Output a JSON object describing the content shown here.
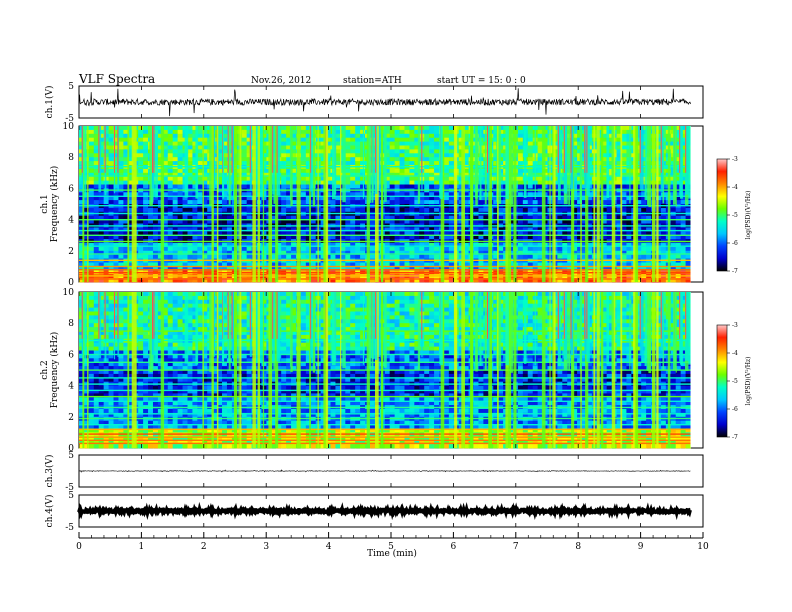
{
  "header": {
    "title": "VLF  Spectra",
    "date": "Nov.26, 2012",
    "station": "station=ATH",
    "start": "start  UT  =   15: 0  : 0"
  },
  "colors": {
    "frame": "#000000",
    "waveform": "#000000",
    "colormap": [
      "#000000",
      "#0000cc",
      "#0044ff",
      "#00c8ff",
      "#00ffc8",
      "#6aff00",
      "#ffff00",
      "#ff8800",
      "#ff2000",
      "#ffc8c8"
    ]
  },
  "chart_data": [
    {
      "type": "line",
      "id": "ch1-waveform",
      "ylabel": "ch.1(V)",
      "yticks": [
        "5",
        "-5"
      ],
      "ylim": [
        -5,
        5
      ],
      "xlim": [
        0,
        10
      ],
      "baseline": 0,
      "description_values": {
        "typical_amplitude": 1,
        "max_spike": 4.5
      }
    },
    {
      "type": "heatmap",
      "id": "ch1-spectrogram",
      "ylabel_channel": "ch.1",
      "ylabel": "Frequency  (kHz)",
      "yticks": [
        "10",
        "8",
        "6",
        "4",
        "2",
        "0"
      ],
      "ylim": [
        0,
        10
      ],
      "xlim": [
        0,
        9.8
      ],
      "colorbar": {
        "label": "log(PSD)(V²/Hz)",
        "ticks": [
          "-3",
          "-4",
          "-5",
          "-6",
          "-7"
        ],
        "range": [
          -7,
          -3
        ]
      },
      "lines_khz": [
        0.2,
        0.4,
        0.6,
        0.8,
        1.0,
        1.4,
        1.8,
        2.3,
        2.6,
        3.0,
        3.3,
        3.6,
        4.0,
        4.4,
        4.9,
        5.5,
        5.9,
        6.8,
        7.4
      ],
      "band_levels": [
        {
          "f_from": 0,
          "f_to": 0.7,
          "level": -3.8
        },
        {
          "f_from": 0.7,
          "f_to": 2.5,
          "level": -5.6
        },
        {
          "f_from": 2.5,
          "f_to": 5.0,
          "level": -6.4
        },
        {
          "f_from": 5.0,
          "f_to": 6.2,
          "level": -6.1
        },
        {
          "f_from": 6.2,
          "f_to": 10,
          "level": -5.0
        }
      ]
    },
    {
      "type": "heatmap",
      "id": "ch2-spectrogram",
      "ylabel_channel": "ch.2",
      "ylabel": "Frequency  (kHz)",
      "yticks": [
        "10",
        "8",
        "6",
        "4",
        "2",
        "0"
      ],
      "ylim": [
        0,
        10
      ],
      "xlim": [
        0,
        9.8
      ],
      "colorbar": {
        "label": "log(PSD)(V²/Hz)",
        "ticks": [
          "-3",
          "-4",
          "-5",
          "-6",
          "-7"
        ],
        "range": [
          -7,
          -3
        ]
      },
      "lines_khz": [
        0.3,
        0.5,
        0.7,
        0.9,
        1.2,
        1.5,
        1.9,
        2.2,
        2.6,
        3.0,
        3.3,
        3.7,
        4.1,
        4.5,
        5.0,
        5.5,
        6.0,
        6.9,
        7.5
      ],
      "band_levels": [
        {
          "f_from": 0,
          "f_to": 1.2,
          "level": -4.6
        },
        {
          "f_from": 1.2,
          "f_to": 3.2,
          "level": -5.8
        },
        {
          "f_from": 3.2,
          "f_to": 5.0,
          "level": -6.3
        },
        {
          "f_from": 5.0,
          "f_to": 6.2,
          "level": -6.0
        },
        {
          "f_from": 6.2,
          "f_to": 10,
          "level": -5.2
        }
      ]
    },
    {
      "type": "line",
      "id": "ch3-waveform",
      "ylabel": "ch.3(V)",
      "yticks": [
        "5",
        "-5"
      ],
      "ylim": [
        -5,
        5
      ],
      "xlim": [
        0,
        10
      ],
      "baseline": 0,
      "description_values": {
        "typical_amplitude": 0.1,
        "max_spike": 0.3
      }
    },
    {
      "type": "line",
      "id": "ch4-waveform",
      "ylabel": "ch.4(V)",
      "yticks": [
        "5",
        "-5"
      ],
      "ylim": [
        -5,
        5
      ],
      "xlim": [
        0,
        10
      ],
      "baseline": 0,
      "description_values": {
        "typical_amplitude": 0.4,
        "max_spike": 0.5
      }
    }
  ],
  "x_axis": {
    "label": "Time  (min)",
    "ticks": [
      "0",
      "1",
      "2",
      "3",
      "4",
      "5",
      "6",
      "7",
      "8",
      "9",
      "10"
    ],
    "range": [
      0,
      10
    ],
    "data_end_min": 9.8
  }
}
